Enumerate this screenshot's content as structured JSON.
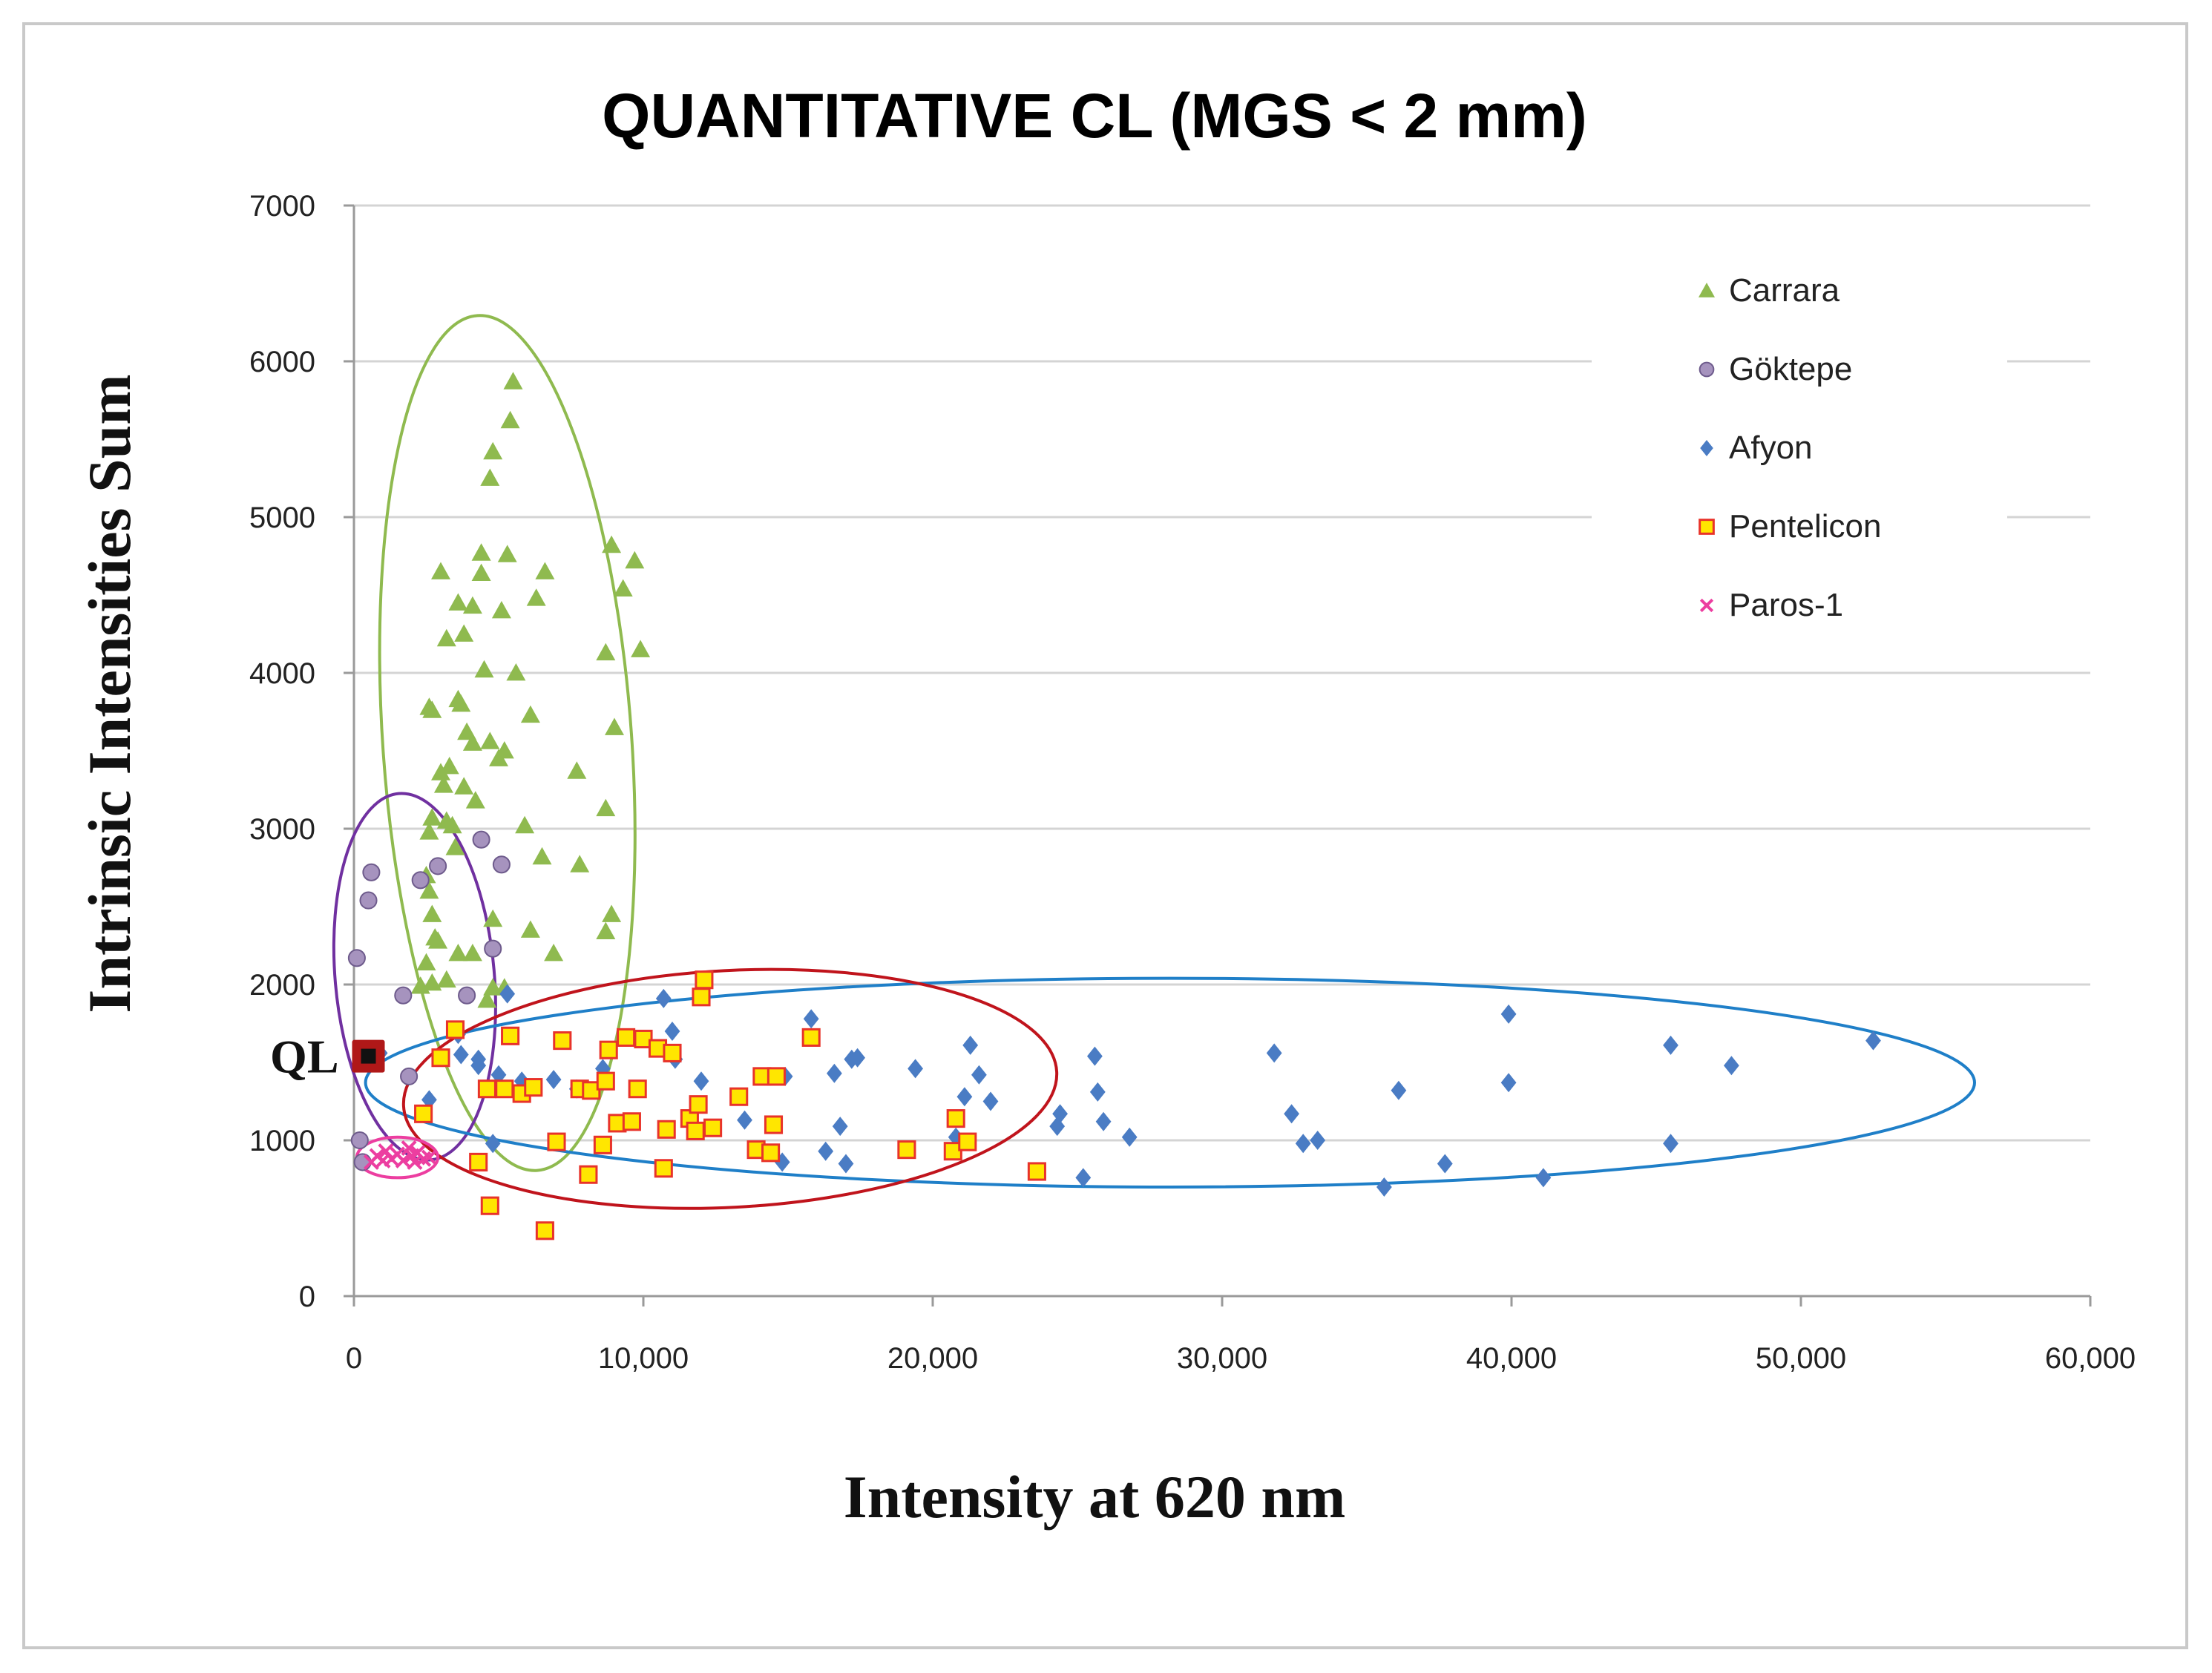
{
  "chart_data": {
    "type": "scatter",
    "title": "QUANTITATIVE CL (MGS < 2 mm)",
    "xlabel": "Intensity at 620 nm",
    "ylabel": "Intrinsic Intensities Sum",
    "xlim": [
      0,
      60000
    ],
    "ylim": [
      0,
      7000
    ],
    "x_ticks": [
      "0",
      "10,000",
      "20,000",
      "30,000",
      "40,000",
      "50,000",
      "60,000"
    ],
    "y_ticks": [
      "0",
      "1000",
      "2000",
      "3000",
      "4000",
      "5000",
      "6000",
      "7000"
    ],
    "grid": "horizontal",
    "legend_position": "top-right",
    "annotation": {
      "label": "QL",
      "x": 500,
      "y": 1540,
      "color": "#b01818"
    },
    "colors": {
      "Carrara": "#8fba4f",
      "Göktepe": "#a693be",
      "Afyon": "#4a7cc4",
      "Pentelicon": "#ffe600",
      "Pentelicon_edge": "#e8332a",
      "Paros-1": "#ec3ea0",
      "ellipse_Carrara": "#8fba4f",
      "ellipse_Göktepe": "#7030a0",
      "ellipse_Afyon": "#1f7fc8",
      "ellipse_Pentelicon": "#c0141c",
      "ellipse_Paros-1": "#ec3ea0"
    },
    "series": [
      {
        "name": "Carrara",
        "marker": "triangle",
        "points": [
          [
            5500,
            5870
          ],
          [
            5400,
            5620
          ],
          [
            4800,
            5420
          ],
          [
            4700,
            5250
          ],
          [
            3000,
            4650
          ],
          [
            4400,
            4640
          ],
          [
            6600,
            4650
          ],
          [
            4400,
            4770
          ],
          [
            5300,
            4760
          ],
          [
            8900,
            4820
          ],
          [
            9700,
            4720
          ],
          [
            3600,
            4450
          ],
          [
            5100,
            4400
          ],
          [
            4100,
            4430
          ],
          [
            6300,
            4480
          ],
          [
            9300,
            4540
          ],
          [
            3200,
            4220
          ],
          [
            3800,
            4250
          ],
          [
            9900,
            4150
          ],
          [
            8700,
            4130
          ],
          [
            5600,
            4000
          ],
          [
            4500,
            4020
          ],
          [
            6100,
            3730
          ],
          [
            9000,
            3650
          ],
          [
            2700,
            3760
          ],
          [
            2600,
            3780
          ],
          [
            3600,
            3830
          ],
          [
            3700,
            3800
          ],
          [
            3900,
            3620
          ],
          [
            4700,
            3560
          ],
          [
            5000,
            3450
          ],
          [
            5200,
            3500
          ],
          [
            4100,
            3550
          ],
          [
            3300,
            3400
          ],
          [
            3100,
            3280
          ],
          [
            3000,
            3360
          ],
          [
            3800,
            3270
          ],
          [
            7700,
            3370
          ],
          [
            4200,
            3180
          ],
          [
            8700,
            3130
          ],
          [
            2700,
            3070
          ],
          [
            3200,
            3050
          ],
          [
            3400,
            3020
          ],
          [
            5900,
            3020
          ],
          [
            2600,
            2980
          ],
          [
            3500,
            2880
          ],
          [
            6500,
            2820
          ],
          [
            7800,
            2770
          ],
          [
            2500,
            2700
          ],
          [
            2600,
            2600
          ],
          [
            2700,
            2450
          ],
          [
            2800,
            2300
          ],
          [
            2900,
            2280
          ],
          [
            3600,
            2200
          ],
          [
            4100,
            2200
          ],
          [
            4800,
            2420
          ],
          [
            6100,
            2350
          ],
          [
            6900,
            2200
          ],
          [
            8700,
            2340
          ],
          [
            8900,
            2450
          ],
          [
            2500,
            2140
          ],
          [
            2700,
            2010
          ],
          [
            3200,
            2030
          ],
          [
            2300,
            1990
          ],
          [
            4600,
            1900
          ],
          [
            5200,
            1980
          ],
          [
            4800,
            1980
          ]
        ]
      },
      {
        "name": "Göktepe",
        "marker": "circle",
        "points": [
          [
            600,
            2720
          ],
          [
            500,
            2540
          ],
          [
            2300,
            2670
          ],
          [
            2900,
            2760
          ],
          [
            4400,
            2930
          ],
          [
            5100,
            2770
          ],
          [
            100,
            2170
          ],
          [
            1700,
            1930
          ],
          [
            3900,
            1930
          ],
          [
            4800,
            2230
          ],
          [
            1900,
            1410
          ],
          [
            200,
            1000
          ],
          [
            300,
            860
          ]
        ]
      },
      {
        "name": "Afyon",
        "marker": "diamond",
        "points": [
          [
            900,
            1560
          ],
          [
            3600,
            1680
          ],
          [
            3700,
            1550
          ],
          [
            4300,
            1480
          ],
          [
            4300,
            1520
          ],
          [
            5000,
            1420
          ],
          [
            5800,
            1380
          ],
          [
            6900,
            1390
          ],
          [
            7700,
            1330
          ],
          [
            8600,
            1460
          ],
          [
            2600,
            1260
          ],
          [
            4800,
            980
          ],
          [
            5300,
            1940
          ],
          [
            10700,
            1910
          ],
          [
            11000,
            1700
          ],
          [
            11100,
            1520
          ],
          [
            12000,
            1380
          ],
          [
            13500,
            1130
          ],
          [
            14900,
            1410
          ],
          [
            14800,
            860
          ],
          [
            15800,
            1780
          ],
          [
            16300,
            930
          ],
          [
            16600,
            1430
          ],
          [
            16800,
            1090
          ],
          [
            17000,
            850
          ],
          [
            17200,
            1520
          ],
          [
            17400,
            1530
          ],
          [
            19400,
            1460
          ],
          [
            20800,
            1020
          ],
          [
            21100,
            1280
          ],
          [
            21300,
            1610
          ],
          [
            21600,
            1420
          ],
          [
            22000,
            1250
          ],
          [
            24300,
            1090
          ],
          [
            24400,
            1170
          ],
          [
            25200,
            760
          ],
          [
            25600,
            1540
          ],
          [
            25700,
            1310
          ],
          [
            25900,
            1120
          ],
          [
            26800,
            1020
          ],
          [
            31800,
            1560
          ],
          [
            32400,
            1170
          ],
          [
            32800,
            980
          ],
          [
            33300,
            1000
          ],
          [
            35600,
            700
          ],
          [
            36100,
            1320
          ],
          [
            37700,
            850
          ],
          [
            39900,
            1810
          ],
          [
            39900,
            1370
          ],
          [
            41100,
            760
          ],
          [
            45500,
            1610
          ],
          [
            45500,
            980
          ],
          [
            47600,
            1480
          ],
          [
            52500,
            1640
          ]
        ]
      },
      {
        "name": "Pentelicon",
        "marker": "square",
        "points": [
          [
            2400,
            1170
          ],
          [
            3000,
            1530
          ],
          [
            3500,
            1710
          ],
          [
            4300,
            860
          ],
          [
            4600,
            1330
          ],
          [
            4700,
            580
          ],
          [
            5200,
            1330
          ],
          [
            5400,
            1670
          ],
          [
            5800,
            1300
          ],
          [
            6200,
            1340
          ],
          [
            6600,
            420
          ],
          [
            7000,
            990
          ],
          [
            7200,
            1640
          ],
          [
            7800,
            1330
          ],
          [
            8100,
            780
          ],
          [
            8200,
            1320
          ],
          [
            8600,
            970
          ],
          [
            8700,
            1380
          ],
          [
            8800,
            1580
          ],
          [
            9100,
            1110
          ],
          [
            9400,
            1660
          ],
          [
            9600,
            1120
          ],
          [
            9800,
            1330
          ],
          [
            10000,
            1650
          ],
          [
            10500,
            1590
          ],
          [
            10700,
            820
          ],
          [
            10800,
            1070
          ],
          [
            11000,
            1560
          ],
          [
            11600,
            1140
          ],
          [
            11800,
            1060
          ],
          [
            11900,
            1230
          ],
          [
            12000,
            1920
          ],
          [
            12100,
            2030
          ],
          [
            12400,
            1080
          ],
          [
            13300,
            1280
          ],
          [
            13900,
            940
          ],
          [
            14100,
            1410
          ],
          [
            14400,
            920
          ],
          [
            14500,
            1100
          ],
          [
            14600,
            1410
          ],
          [
            15800,
            1660
          ],
          [
            19100,
            940
          ],
          [
            20700,
            930
          ],
          [
            20800,
            1140
          ],
          [
            21200,
            990
          ],
          [
            23600,
            800
          ]
        ]
      },
      {
        "name": "Paros-1",
        "marker": "x",
        "points": [
          [
            600,
            860
          ],
          [
            800,
            900
          ],
          [
            1000,
            870
          ],
          [
            1100,
            930
          ],
          [
            1300,
            880
          ],
          [
            1500,
            910
          ],
          [
            1700,
            870
          ],
          [
            1900,
            950
          ],
          [
            2000,
            900
          ],
          [
            2100,
            860
          ],
          [
            2200,
            920
          ],
          [
            2400,
            880
          ],
          [
            2600,
            890
          ]
        ]
      }
    ],
    "ellipses": [
      {
        "series": "Carrara",
        "cx": 5300,
        "cy": 3550,
        "rx": 4300,
        "ry": 2750,
        "rotation": -4
      },
      {
        "series": "Göktepe",
        "cx": 2100,
        "cy": 2050,
        "rx": 2750,
        "ry": 1180,
        "rotation": -5
      },
      {
        "series": "Afyon",
        "cx": 28200,
        "cy": 1370,
        "rx": 27800,
        "ry": 670,
        "rotation": 0
      },
      {
        "series": "Pentelicon",
        "cx": 13000,
        "cy": 1330,
        "rx": 11300,
        "ry": 760,
        "rotation": -3
      },
      {
        "series": "Paros-1",
        "cx": 1500,
        "cy": 890,
        "rx": 1400,
        "ry": 130,
        "rotation": 0
      }
    ]
  }
}
